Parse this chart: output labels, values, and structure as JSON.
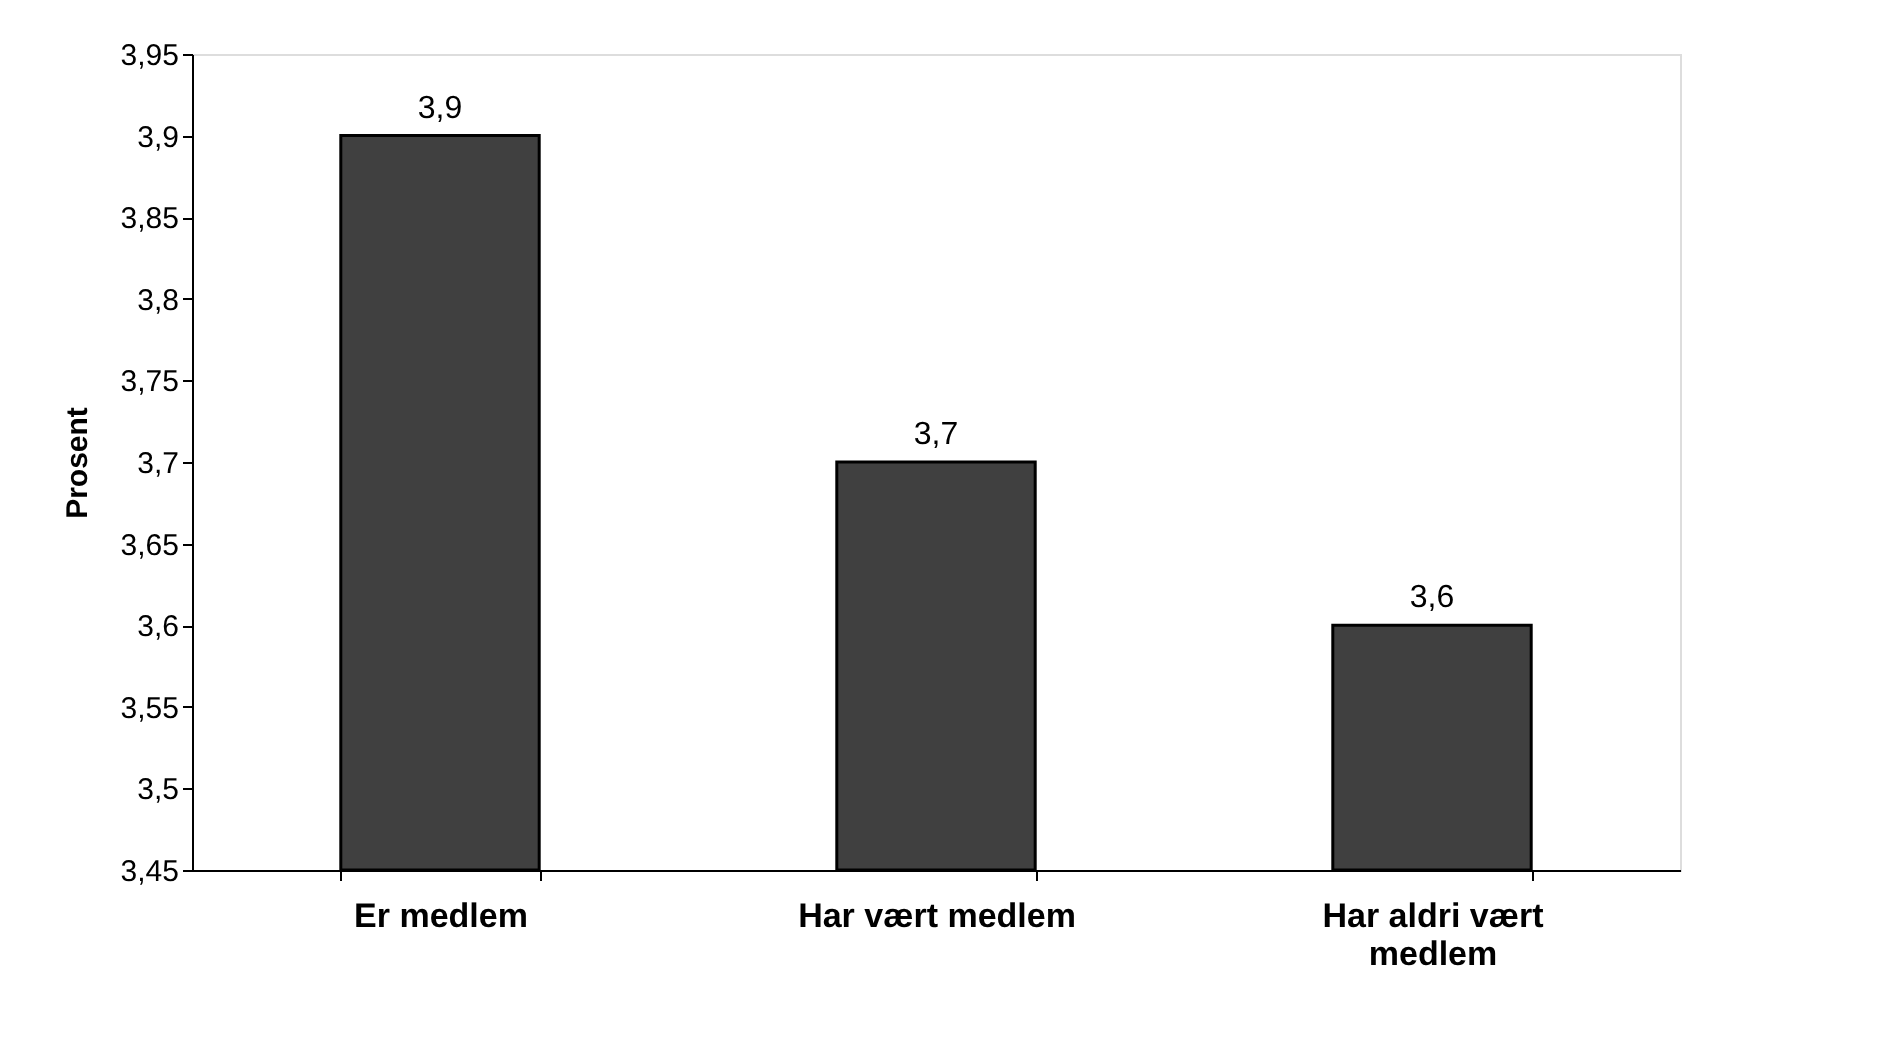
{
  "chart_data": {
    "type": "bar",
    "ylabel": "Prosent",
    "categories": [
      "Er medlem",
      "Har vært medlem",
      "Har aldri vært medlem"
    ],
    "values": [
      3.9,
      3.7,
      3.6
    ],
    "value_labels": [
      "3,9",
      "3,7",
      "3,6"
    ],
    "color": "#404040",
    "ylim": [
      3.45,
      3.95
    ],
    "yticks": [
      {
        "value": 3.45,
        "label": "3,45"
      },
      {
        "value": 3.5,
        "label": "3,5"
      },
      {
        "value": 3.55,
        "label": "3,55"
      },
      {
        "value": 3.6,
        "label": "3,6"
      },
      {
        "value": 3.65,
        "label": "3,65"
      },
      {
        "value": 3.7,
        "label": "3,7"
      },
      {
        "value": 3.75,
        "label": "3,75"
      },
      {
        "value": 3.8,
        "label": "3,8"
      },
      {
        "value": 3.85,
        "label": "3,85"
      },
      {
        "value": 3.9,
        "label": "3,9"
      },
      {
        "value": 3.95,
        "label": "3,95"
      }
    ],
    "grid": false
  }
}
